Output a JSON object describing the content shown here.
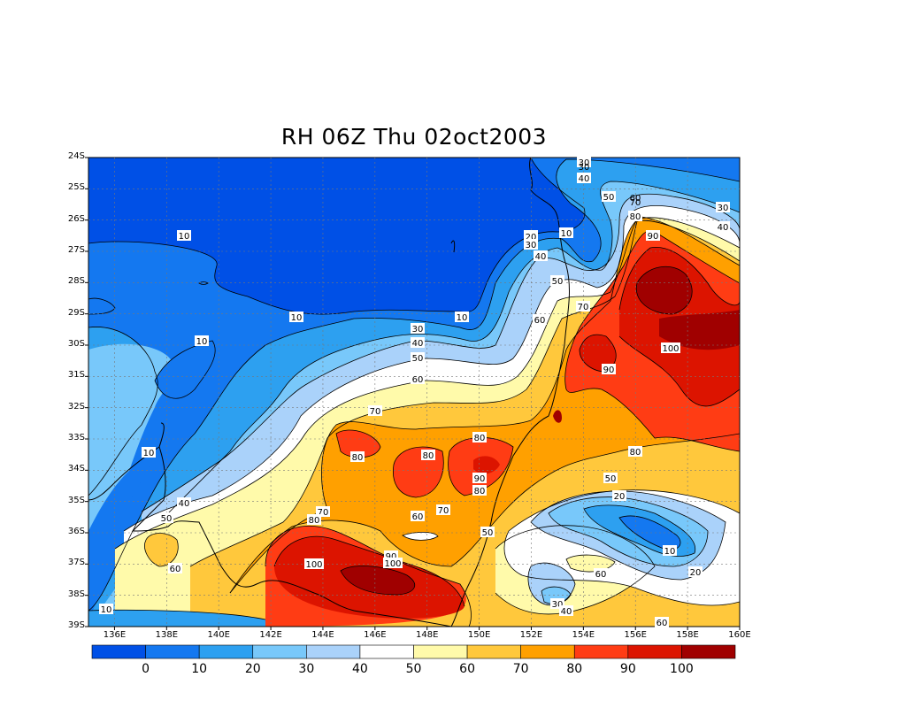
{
  "title": "RH 06Z Thu 02oct2003",
  "lat_labels": [
    "24S",
    "25S",
    "26S",
    "27S",
    "28S",
    "29S",
    "30S",
    "31S",
    "32S",
    "33S",
    "34S",
    "35S",
    "36S",
    "37S",
    "38S",
    "39S"
  ],
  "lon_labels": [
    "136E",
    "138E",
    "140E",
    "142E",
    "144E",
    "146E",
    "148E",
    "150E",
    "152E",
    "154E",
    "156E",
    "158E",
    "160E"
  ],
  "colorbar": {
    "colors": [
      "#0050e6",
      "#1478f0",
      "#2da0f0",
      "#78c8fa",
      "#aad2fa",
      "#ffffff",
      "#fffaaa",
      "#ffc83c",
      "#ffa000",
      "#ff3c14",
      "#dc1400",
      "#a00000"
    ],
    "labels": [
      "0",
      "10",
      "20",
      "30",
      "40",
      "50",
      "60",
      "70",
      "80",
      "90",
      "100"
    ]
  },
  "contour_labels": [
    "10",
    "10",
    "10",
    "10",
    "10",
    "10",
    "10",
    "10",
    "10",
    "20",
    "20",
    "20",
    "20",
    "30",
    "30",
    "30",
    "30",
    "30",
    "40",
    "40",
    "40",
    "40",
    "40",
    "40",
    "50",
    "50",
    "50",
    "50",
    "50",
    "50",
    "60",
    "60",
    "60",
    "60",
    "60",
    "60",
    "70",
    "70",
    "70",
    "70",
    "80",
    "80",
    "80",
    "80",
    "80",
    "80",
    "80",
    "90",
    "90",
    "90",
    "90",
    "100",
    "100",
    "100"
  ]
}
